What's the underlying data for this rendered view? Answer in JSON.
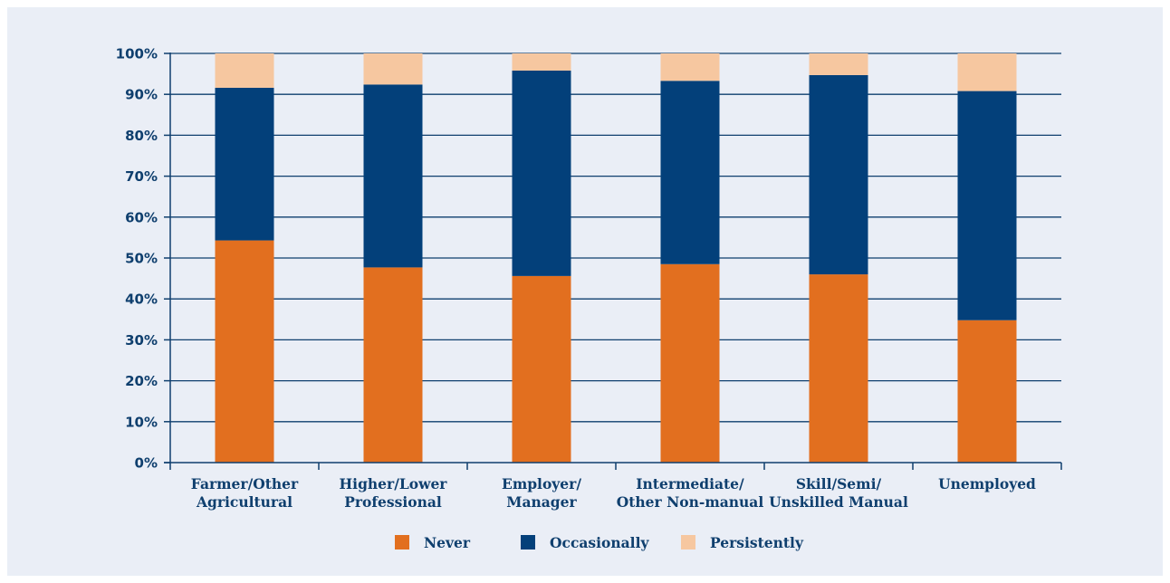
{
  "colors": {
    "background": "#eaeef6",
    "axis": "#0f3f6e",
    "never": "#e26f1f",
    "occasionally": "#03407a",
    "persistently": "#f6c7a0"
  },
  "chart_data": {
    "type": "bar",
    "stacked": true,
    "categories": [
      [
        "Farmer/Other",
        "Agricultural"
      ],
      [
        "Higher/Lower",
        "Professional"
      ],
      [
        "Employer/",
        "Manager"
      ],
      [
        "Intermediate/",
        "Other Non-manual"
      ],
      [
        "Skill/Semi/",
        "Unskilled Manual"
      ],
      [
        "Unemployed"
      ]
    ],
    "series": [
      {
        "name": "Never",
        "values": [
          54.3,
          47.7,
          45.6,
          48.5,
          46.0,
          34.8
        ]
      },
      {
        "name": "Occasionally",
        "values": [
          37.3,
          44.7,
          50.2,
          44.8,
          48.7,
          56.0
        ]
      },
      {
        "name": "Persistently",
        "values": [
          8.4,
          7.6,
          4.2,
          6.7,
          5.3,
          9.2
        ]
      }
    ],
    "ylim": [
      0,
      100
    ],
    "yticks": [
      "0%",
      "10%",
      "20%",
      "30%",
      "40%",
      "50%",
      "60%",
      "70%",
      "80%",
      "90%",
      "100%"
    ],
    "grid": true,
    "legend": "bottom"
  }
}
